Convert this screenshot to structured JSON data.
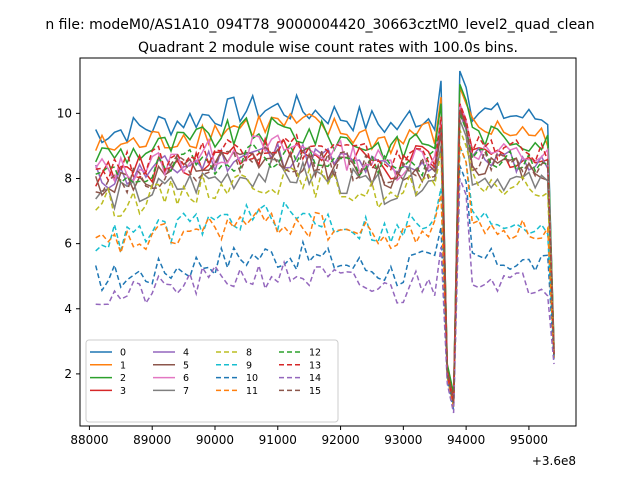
{
  "chart_data": {
    "type": "line",
    "suptitle": "n file: modeM0/AS1A10_094T78_9000004420_30663cztM0_level2_quad_clean",
    "title": "Quadrant 2 module wise count rates with 100.0s bins.",
    "xlabel": "",
    "ylabel": "",
    "x_offset_label": "+3.6e8",
    "xlim": [
      87850,
      95750
    ],
    "ylim": [
      0.4,
      11.7
    ],
    "xticks": [
      88000,
      89000,
      90000,
      91000,
      92000,
      93000,
      94000,
      95000
    ],
    "yticks": [
      2,
      4,
      6,
      8,
      10
    ],
    "grid": false,
    "legend": {
      "placement": "lower-left",
      "columns": 4
    },
    "series": [
      {
        "name": "0",
        "color": "#1f77b4",
        "dash": "solid",
        "base": 9.8,
        "dipMin": 1.2,
        "peak": 11.3
      },
      {
        "name": "1",
        "color": "#ff7f0e",
        "dash": "solid",
        "base": 9.3,
        "dipMin": 1.3,
        "peak": 10.8
      },
      {
        "name": "2",
        "color": "#2ca02c",
        "dash": "solid",
        "base": 9.1,
        "dipMin": 1.4,
        "peak": 10.9
      },
      {
        "name": "3",
        "color": "#d62728",
        "dash": "solid",
        "base": 8.5,
        "dipMin": 1.2,
        "peak": 10.2
      },
      {
        "name": "4",
        "color": "#9467bd",
        "dash": "solid",
        "base": 8.4,
        "dipMin": 1.0,
        "peak": 10.0
      },
      {
        "name": "5",
        "color": "#8c564b",
        "dash": "solid",
        "base": 8.2,
        "dipMin": 1.1,
        "peak": 10.1
      },
      {
        "name": "6",
        "color": "#e377c2",
        "dash": "solid",
        "base": 8.6,
        "dipMin": 1.1,
        "peak": 10.3
      },
      {
        "name": "7",
        "color": "#7f7f7f",
        "dash": "solid",
        "base": 7.8,
        "dipMin": 1.0,
        "peak": 9.8
      },
      {
        "name": "8",
        "color": "#bcbd22",
        "dash": "dashed",
        "base": 7.6,
        "dipMin": 1.0,
        "peak": 9.5
      },
      {
        "name": "9",
        "color": "#17becf",
        "dash": "dashed",
        "base": 6.5,
        "dipMin": 1.0,
        "peak": 9.0
      },
      {
        "name": "10",
        "color": "#1f77b4",
        "dash": "dashed",
        "base": 5.3,
        "dipMin": 0.9,
        "peak": 8.4
      },
      {
        "name": "11",
        "color": "#ff7f0e",
        "dash": "dashed",
        "base": 6.3,
        "dipMin": 1.0,
        "peak": 9.0
      },
      {
        "name": "12",
        "color": "#2ca02c",
        "dash": "dashed",
        "base": 8.4,
        "dipMin": 1.1,
        "peak": 10.0
      },
      {
        "name": "13",
        "color": "#d62728",
        "dash": "dashed",
        "base": 8.7,
        "dipMin": 1.1,
        "peak": 10.3
      },
      {
        "name": "14",
        "color": "#9467bd",
        "dash": "dashed",
        "base": 4.7,
        "dipMin": 0.8,
        "peak": 8.0
      },
      {
        "name": "15",
        "color": "#8c564b",
        "dash": "dashed",
        "base": 8.3,
        "dipMin": 1.1,
        "peak": 10.1
      }
    ],
    "time_range": [
      88100,
      95400
    ],
    "bin_seconds": 100
  }
}
